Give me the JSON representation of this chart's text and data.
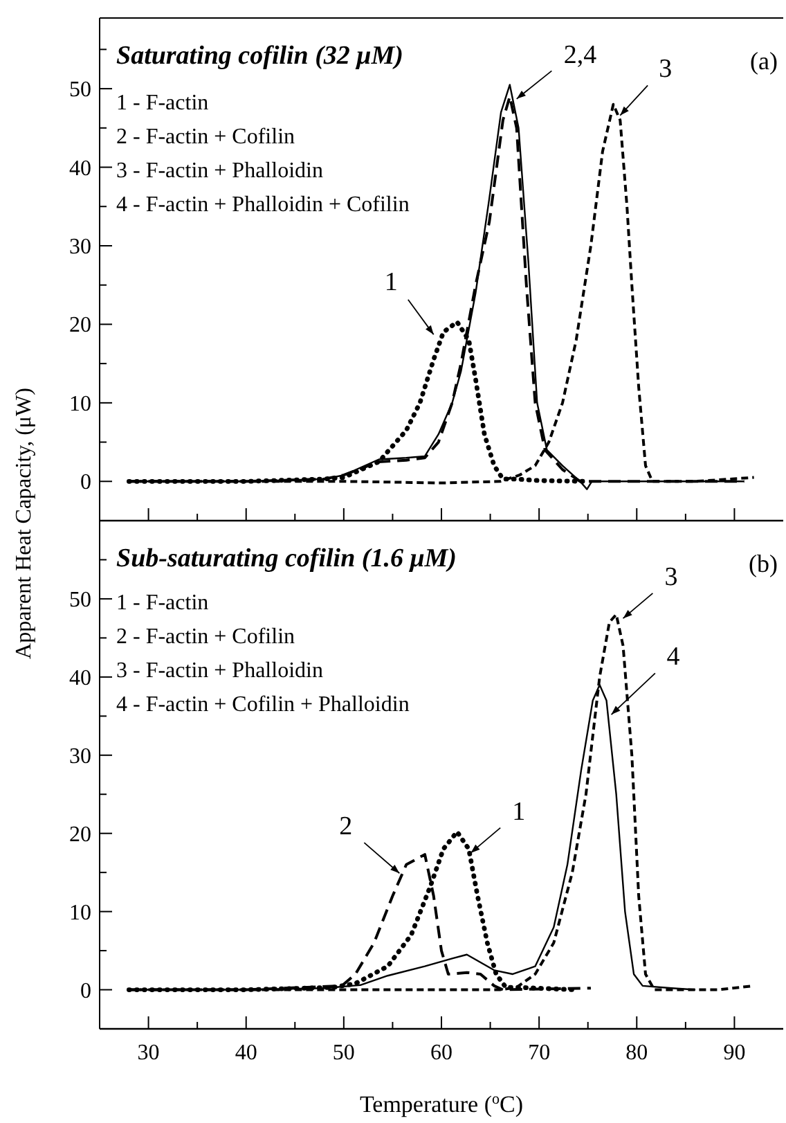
{
  "chart_data": [
    {
      "type": "line",
      "title": "Saturating cofilin (32 μM)",
      "ylabel": "Apparent Heat Capacity, (μW)",
      "xlim": [
        25,
        95
      ],
      "ylim": [
        -5,
        59
      ],
      "xticks": [
        {
          "value": 30,
          "label": null
        },
        {
          "value": 35,
          "label": null
        },
        {
          "value": 40,
          "label": null
        },
        {
          "value": 45,
          "label": null
        },
        {
          "value": 50,
          "label": null
        },
        {
          "value": 55,
          "label": null
        },
        {
          "value": 60,
          "label": null
        },
        {
          "value": 65,
          "label": null
        },
        {
          "value": 70,
          "label": null
        },
        {
          "value": 75,
          "label": null
        },
        {
          "value": 80,
          "label": null
        },
        {
          "value": 85,
          "label": null
        },
        {
          "value": 90,
          "label": null
        }
      ],
      "yticks": [
        0,
        {
          "value": 5,
          "label": null
        },
        10,
        {
          "value": 15,
          "label": null
        },
        20,
        {
          "value": 25,
          "label": null
        },
        30,
        {
          "value": 35,
          "label": null
        },
        40,
        {
          "value": 45,
          "label": null
        },
        50,
        {
          "value": 55,
          "label": null
        }
      ],
      "tick_labels": "y",
      "grid": false,
      "series": [
        {
          "color": "#000000",
          "line_style": "dotted",
          "x": [
            28,
            40,
            48,
            50,
            53.6,
            56.4,
            57.8,
            59.2,
            60.2,
            61.6,
            62.8,
            63.5,
            64.4,
            65.4,
            66.3,
            67.7,
            70,
            75
          ],
          "values": [
            0,
            0,
            0.3,
            0.5,
            2.5,
            6.5,
            10,
            15.5,
            19,
            20.3,
            18,
            13,
            6,
            2,
            0.3,
            0.3,
            0.1,
            0
          ]
        },
        {
          "color": "#000000",
          "line_style": "dashed",
          "x": [
            28,
            40,
            48,
            50,
            53.6,
            56.4,
            58.3,
            59.7,
            61.1,
            62,
            63.5,
            64.9,
            66.3,
            67,
            67.7,
            68.7,
            69.6,
            70.6,
            72.4,
            74.2,
            80,
            91
          ],
          "values": [
            0,
            0,
            0.3,
            0.8,
            2.5,
            2.7,
            3,
            5,
            10,
            15,
            25,
            33,
            46,
            49,
            45,
            25,
            10,
            4,
            1.5,
            0,
            0,
            0
          ]
        },
        {
          "color": "#000000",
          "line_style": "dashed",
          "x": [
            28,
            40,
            50,
            60,
            66,
            68,
            69.6,
            71,
            72.4,
            73.8,
            75.3,
            76.5,
            77.6,
            78.3,
            79,
            79.5,
            80.2,
            80.9,
            81.6,
            86,
            92
          ],
          "values": [
            0,
            0,
            0,
            -0.2,
            0,
            0.8,
            2,
            5,
            10,
            18,
            30,
            42,
            48,
            46,
            35,
            25,
            12,
            2,
            0,
            0,
            0.5
          ]
        },
        {
          "color": "#000000",
          "line_style": "solid",
          "x": [
            28,
            40,
            48,
            50,
            53.6,
            56.4,
            58.3,
            59.7,
            61.1,
            62,
            63.5,
            64.9,
            66.1,
            67,
            67.9,
            68.9,
            69.8,
            70.8,
            72.4,
            74.2,
            74.9,
            75.4,
            80,
            91
          ],
          "values": [
            0,
            0,
            0.3,
            0.8,
            2.8,
            3,
            3.2,
            6,
            10,
            14,
            24,
            36,
            47,
            50.5,
            45,
            28,
            10,
            4,
            2,
            0,
            -1,
            0,
            0,
            0
          ]
        }
      ],
      "annotations": [
        {
          "text": "1",
          "x": 59.2,
          "y": 18.7
        },
        {
          "text": "2,4",
          "x": 67.7,
          "y": 48.7
        },
        {
          "text": "3",
          "x": 78.3,
          "y": 46.6
        },
        "(a)",
        "1 - F-actin",
        "2 - F-actin + Cofilin",
        "3 - F-actin + Phalloidin",
        "4 - F-actin + Phalloidin + Cofilin"
      ]
    },
    {
      "type": "line",
      "title": "Sub-saturating cofilin (1.6 μM)",
      "xlabel": "Temperature ($^{o}$C)",
      "xlim": [
        25,
        95
      ],
      "ylim": [
        -5,
        60
      ],
      "xticks": [
        30,
        {
          "value": 35,
          "label": null
        },
        40,
        {
          "value": 45,
          "label": null
        },
        50,
        {
          "value": 55,
          "label": null
        },
        60,
        {
          "value": 65,
          "label": null
        },
        70,
        {
          "value": 75,
          "label": null
        },
        80,
        {
          "value": 85,
          "label": null
        },
        90
      ],
      "yticks": [
        0,
        {
          "value": 5,
          "label": null
        },
        10,
        {
          "value": 15,
          "label": null
        },
        20,
        {
          "value": 25,
          "label": null
        },
        30,
        {
          "value": 35,
          "label": null
        },
        40,
        {
          "value": 45,
          "label": null
        },
        50,
        {
          "value": 55,
          "label": null
        }
      ],
      "grid": false,
      "series": [
        {
          "color": "#000000",
          "line_style": "dotted",
          "x": [
            28,
            40,
            48.9,
            51.2,
            54.5,
            56.9,
            58.8,
            60.2,
            61.6,
            62.8,
            63.7,
            64.7,
            65.6,
            66.6,
            68,
            73.5
          ],
          "values": [
            0,
            0,
            0.3,
            0.8,
            3,
            7,
            13,
            18,
            20.2,
            18,
            12,
            6,
            2,
            0.3,
            0.3,
            0
          ]
        },
        {
          "color": "#000000",
          "line_style": "dashed",
          "x": [
            28,
            40,
            49.8,
            51.2,
            53.1,
            55,
            56.4,
            58.3,
            59.2,
            60,
            60.7,
            62.6,
            64,
            65.4,
            66.3,
            75.3
          ],
          "values": [
            0,
            0,
            0.5,
            2,
            6,
            12,
            16,
            17.3,
            12,
            5,
            2,
            2.2,
            2,
            0.5,
            0,
            0.2
          ]
        },
        {
          "color": "#000000",
          "line_style": "dashed",
          "x": [
            28,
            40,
            50,
            60,
            66,
            67.7,
            69.6,
            71.5,
            73.4,
            74.8,
            76.2,
            77.2,
            77.9,
            78.6,
            79.5,
            80.2,
            80.9,
            81.8,
            84.6,
            88.3,
            92
          ],
          "values": [
            0,
            0,
            0,
            0,
            0,
            0.3,
            2,
            6,
            15,
            25,
            40,
            47,
            48,
            44,
            30,
            12,
            2,
            0,
            0,
            0,
            0.5
          ]
        },
        {
          "color": "#000000",
          "line_style": "solid",
          "x": [
            28,
            40,
            48,
            51.7,
            54.5,
            58.3,
            61.1,
            62.6,
            64,
            65.4,
            67.3,
            69.6,
            71.5,
            72.9,
            74.3,
            75.5,
            76.2,
            76.9,
            77.9,
            78.8,
            79.7,
            80.6,
            83.6,
            86
          ],
          "values": [
            0,
            0,
            0.2,
            0.6,
            1.8,
            3,
            4,
            4.5,
            3.5,
            2.5,
            2,
            3,
            8,
            16,
            28,
            37,
            39,
            37,
            25,
            10,
            2,
            0.5,
            0.2,
            0
          ]
        }
      ],
      "annotations": [
        {
          "text": "2",
          "x": 55.7,
          "y": 14.9
        },
        {
          "text": "1",
          "x": 63,
          "y": 17.5
        },
        {
          "text": "3",
          "x": 78.6,
          "y": 47.5
        },
        {
          "text": "4",
          "x": 77.4,
          "y": 35.2
        },
        "(b)",
        "1 - F-actin",
        "2 - F-actin + Cofilin",
        "3 - F-actin + Phalloidin",
        "4 - F-actin + Cofilin + Phalloidin"
      ]
    }
  ]
}
